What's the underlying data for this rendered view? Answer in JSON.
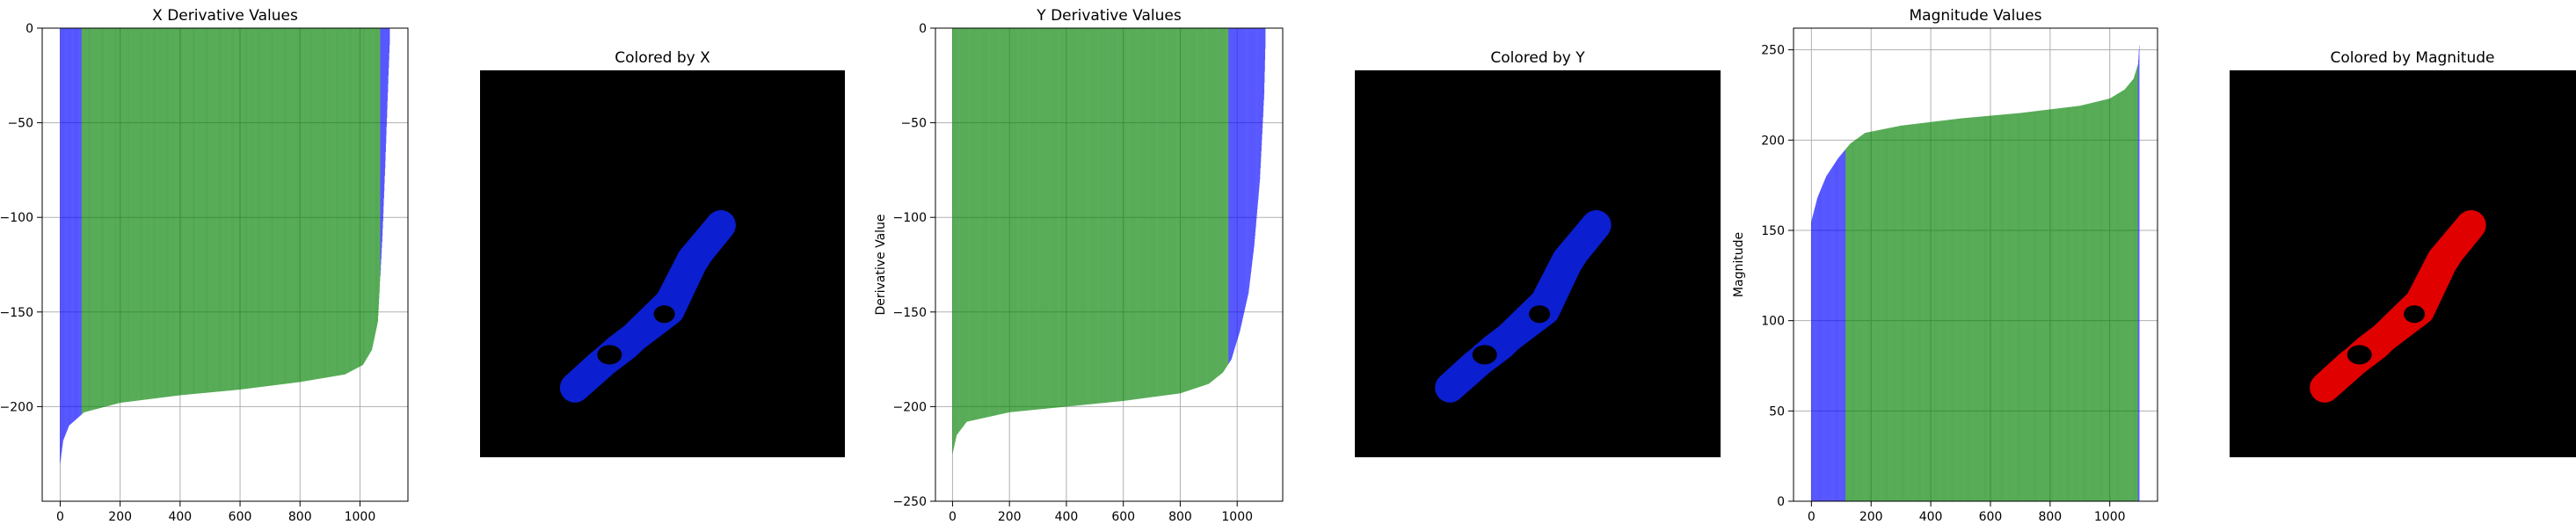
{
  "chart_data": [
    {
      "type": "bar",
      "title": "X Derivative Values",
      "xlabel": "",
      "ylabel": "",
      "xlim": [
        -60,
        1160
      ],
      "ylim": [
        -250,
        0
      ],
      "xticks": [
        0,
        200,
        400,
        600,
        800,
        1000
      ],
      "yticks": [
        0,
        -50,
        -100,
        -150,
        -200
      ],
      "grid": true,
      "bar_count": 1100,
      "colors": {
        "primary": "#008000",
        "secondary": "#0000ff"
      },
      "color_ranges": [
        {
          "from": 0,
          "to": 72,
          "color": "#0000ff"
        },
        {
          "from": 72,
          "to": 1068,
          "color": "#008000"
        },
        {
          "from": 1068,
          "to": 1100,
          "color": "#0000ff"
        }
      ],
      "curve": [
        [
          0,
          -230
        ],
        [
          10,
          -218
        ],
        [
          30,
          -210
        ],
        [
          80,
          -203
        ],
        [
          200,
          -198
        ],
        [
          400,
          -194
        ],
        [
          600,
          -191
        ],
        [
          800,
          -187
        ],
        [
          950,
          -183
        ],
        [
          1010,
          -178
        ],
        [
          1040,
          -170
        ],
        [
          1060,
          -155
        ],
        [
          1075,
          -110
        ],
        [
          1085,
          -70
        ],
        [
          1095,
          -25
        ],
        [
          1100,
          -5
        ]
      ]
    },
    {
      "type": "image",
      "title": "Colored by X",
      "background": "#000000",
      "shape_color": "#0b1ed0",
      "shape": [
        [
          0.26,
          0.82
        ],
        [
          0.38,
          0.72
        ],
        [
          0.52,
          0.62
        ],
        [
          0.58,
          0.5
        ],
        [
          0.6,
          0.47
        ],
        [
          0.66,
          0.4
        ],
        [
          0.58,
          0.49
        ],
        [
          0.52,
          0.6
        ],
        [
          0.4,
          0.71
        ],
        [
          0.33,
          0.76
        ]
      ]
    },
    {
      "type": "bar",
      "title": "Y Derivative Values",
      "xlabel": "",
      "ylabel": "Derivative Value",
      "xlim": [
        -60,
        1160
      ],
      "ylim": [
        -250,
        0
      ],
      "xticks": [
        0,
        200,
        400,
        600,
        800,
        1000
      ],
      "yticks": [
        0,
        -50,
        -100,
        -150,
        -200,
        -250
      ],
      "grid": true,
      "bar_count": 1100,
      "colors": {
        "primary": "#008000",
        "secondary": "#0000ff"
      },
      "color_ranges": [
        {
          "from": 0,
          "to": 970,
          "color": "#008000"
        },
        {
          "from": 970,
          "to": 1100,
          "color": "#0000ff"
        }
      ],
      "curve": [
        [
          0,
          -225
        ],
        [
          15,
          -215
        ],
        [
          50,
          -208
        ],
        [
          200,
          -203
        ],
        [
          400,
          -200
        ],
        [
          600,
          -197
        ],
        [
          800,
          -193
        ],
        [
          900,
          -188
        ],
        [
          950,
          -182
        ],
        [
          980,
          -175
        ],
        [
          1010,
          -160
        ],
        [
          1040,
          -140
        ],
        [
          1060,
          -115
        ],
        [
          1080,
          -80
        ],
        [
          1095,
          -35
        ],
        [
          1100,
          -5
        ]
      ]
    },
    {
      "type": "image",
      "title": "Colored by Y",
      "background": "#000000",
      "shape_color": "#0b1ed0",
      "shape": [
        [
          0.26,
          0.82
        ],
        [
          0.38,
          0.72
        ],
        [
          0.52,
          0.62
        ],
        [
          0.58,
          0.5
        ],
        [
          0.6,
          0.47
        ],
        [
          0.66,
          0.4
        ],
        [
          0.58,
          0.49
        ],
        [
          0.52,
          0.6
        ],
        [
          0.4,
          0.71
        ],
        [
          0.33,
          0.76
        ]
      ]
    },
    {
      "type": "bar",
      "title": "Magnitude Values",
      "xlabel": "",
      "ylabel": "Magnitude",
      "xlim": [
        -60,
        1160
      ],
      "ylim": [
        0,
        262
      ],
      "xticks": [
        0,
        200,
        400,
        600,
        800,
        1000
      ],
      "yticks": [
        0,
        50,
        100,
        150,
        200,
        250
      ],
      "grid": true,
      "bar_count": 1100,
      "colors": {
        "primary": "#008000",
        "secondary": "#0000ff"
      },
      "color_ranges": [
        {
          "from": 0,
          "to": 115,
          "color": "#0000ff"
        },
        {
          "from": 115,
          "to": 1095,
          "color": "#008000"
        },
        {
          "from": 1095,
          "to": 1100,
          "color": "#0000ff"
        }
      ],
      "curve": [
        [
          0,
          155
        ],
        [
          20,
          168
        ],
        [
          50,
          180
        ],
        [
          90,
          190
        ],
        [
          130,
          198
        ],
        [
          180,
          204
        ],
        [
          300,
          208
        ],
        [
          500,
          212
        ],
        [
          700,
          215
        ],
        [
          900,
          219
        ],
        [
          1000,
          223
        ],
        [
          1050,
          228
        ],
        [
          1080,
          234
        ],
        [
          1095,
          242
        ],
        [
          1100,
          255
        ]
      ]
    },
    {
      "type": "image",
      "title": "Colored by Magnitude",
      "background": "#000000",
      "shape_color": "#e00000",
      "shape": [
        [
          0.26,
          0.82
        ],
        [
          0.38,
          0.72
        ],
        [
          0.52,
          0.62
        ],
        [
          0.58,
          0.5
        ],
        [
          0.6,
          0.47
        ],
        [
          0.66,
          0.4
        ],
        [
          0.58,
          0.49
        ],
        [
          0.52,
          0.6
        ],
        [
          0.4,
          0.71
        ],
        [
          0.33,
          0.76
        ]
      ]
    }
  ]
}
